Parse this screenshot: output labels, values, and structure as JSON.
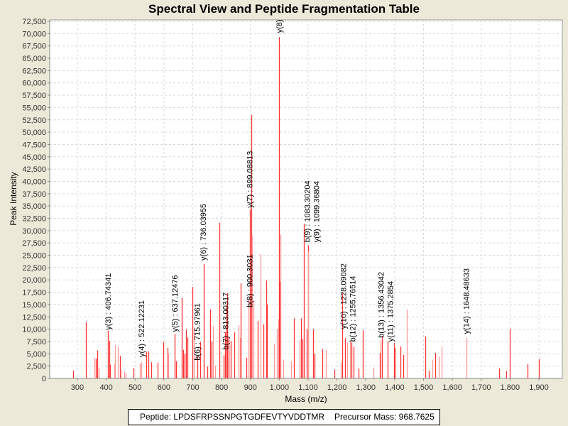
{
  "title": "Spectral View and Peptide Fragmentation Table",
  "footer": {
    "peptide": "Peptide: LPDSFRPSSNPGTGDFEVTYVDDTMR",
    "precursor": "Precursor Mass: 968.7625"
  },
  "chart_data": {
    "type": "bar",
    "title": "Spectral View and Peptide Fragmentation Table",
    "xlabel": "Mass (m/z)",
    "ylabel": "Peak Intensity",
    "xlim": [
      205,
      1980
    ],
    "ylim": [
      0,
      72500
    ],
    "grid": true,
    "x_ticks": [
      300,
      400,
      500,
      600,
      700,
      800,
      900,
      1000,
      1100,
      1200,
      1300,
      1400,
      1500,
      1600,
      1700,
      1800,
      1900
    ],
    "x_tick_labels": [
      "300",
      "400",
      "500",
      "600",
      "700",
      "800",
      "900",
      "1,000",
      "1,100",
      "1,200",
      "1,300",
      "1,400",
      "1,500",
      "1,600",
      "1,700",
      "1,800",
      "1,900"
    ],
    "y_ticks": [
      0,
      2500,
      5000,
      7500,
      10000,
      12500,
      15000,
      17500,
      20000,
      22500,
      25000,
      27500,
      30000,
      32500,
      35000,
      37500,
      40000,
      42500,
      45000,
      47500,
      50000,
      52500,
      55000,
      57500,
      60000,
      62500,
      65000,
      67500,
      70000,
      72500
    ],
    "y_tick_labels": [
      "0",
      "2,500",
      "5,000",
      "7,500",
      "10,000",
      "12,500",
      "15,000",
      "17,500",
      "20,000",
      "22,500",
      "25,000",
      "27,500",
      "30,000",
      "32,500",
      "35,000",
      "37,500",
      "40,000",
      "42,500",
      "45,000",
      "47,500",
      "50,000",
      "52,500",
      "55,000",
      "57,500",
      "60,000",
      "62,500",
      "65,000",
      "67,500",
      "70,000",
      "72,500"
    ],
    "colors": {
      "annotated": "#ff3333",
      "unannotated": "#ff9999"
    },
    "peaks": [
      {
        "mz": 285,
        "intensity": 1600,
        "annotated": true
      },
      {
        "mz": 330,
        "intensity": 11500,
        "annotated": true
      },
      {
        "mz": 359,
        "intensity": 4200,
        "annotated": false
      },
      {
        "mz": 364,
        "intensity": 4000,
        "annotated": true
      },
      {
        "mz": 369,
        "intensity": 5700,
        "annotated": true
      },
      {
        "mz": 373,
        "intensity": 2200,
        "annotated": false
      },
      {
        "mz": 406,
        "intensity": 9700,
        "annotated": true
      },
      {
        "mz": 410,
        "intensity": 7600,
        "annotated": true
      },
      {
        "mz": 412,
        "intensity": 2800,
        "annotated": true
      },
      {
        "mz": 428,
        "intensity": 2900,
        "annotated": false
      },
      {
        "mz": 430,
        "intensity": 6800,
        "annotated": false
      },
      {
        "mz": 440,
        "intensity": 6500,
        "annotated": false
      },
      {
        "mz": 447,
        "intensity": 4600,
        "annotated": true
      },
      {
        "mz": 450,
        "intensity": 1700,
        "annotated": false
      },
      {
        "mz": 462,
        "intensity": 1400,
        "annotated": false
      },
      {
        "mz": 468,
        "intensity": 1100,
        "annotated": false
      },
      {
        "mz": 494,
        "intensity": 2100,
        "annotated": true
      },
      {
        "mz": 517,
        "intensity": 3000,
        "annotated": false
      },
      {
        "mz": 522,
        "intensity": 3300,
        "annotated": false
      },
      {
        "mz": 538,
        "intensity": 5400,
        "annotated": true
      },
      {
        "mz": 547,
        "intensity": 5500,
        "annotated": true
      },
      {
        "mz": 556,
        "intensity": 3300,
        "annotated": true
      },
      {
        "mz": 578,
        "intensity": 3200,
        "annotated": true
      },
      {
        "mz": 599,
        "intensity": 7400,
        "annotated": true
      },
      {
        "mz": 613,
        "intensity": 6200,
        "annotated": true
      },
      {
        "mz": 616,
        "intensity": 5000,
        "annotated": false
      },
      {
        "mz": 637,
        "intensity": 9000,
        "annotated": true
      },
      {
        "mz": 642,
        "intensity": 3500,
        "annotated": true
      },
      {
        "mz": 661,
        "intensity": 16300,
        "annotated": true
      },
      {
        "mz": 667,
        "intensity": 5800,
        "annotated": true
      },
      {
        "mz": 671,
        "intensity": 5000,
        "annotated": true
      },
      {
        "mz": 677,
        "intensity": 9900,
        "annotated": true
      },
      {
        "mz": 681,
        "intensity": 8300,
        "annotated": true
      },
      {
        "mz": 699,
        "intensity": 18600,
        "annotated": true
      },
      {
        "mz": 703,
        "intensity": 10000,
        "annotated": false
      },
      {
        "mz": 715,
        "intensity": 4500,
        "annotated": true
      },
      {
        "mz": 725,
        "intensity": 7400,
        "annotated": true
      },
      {
        "mz": 737,
        "intensity": 23200,
        "annotated": true
      },
      {
        "mz": 750,
        "intensity": 2400,
        "annotated": true
      },
      {
        "mz": 760,
        "intensity": 14000,
        "annotated": true
      },
      {
        "mz": 764,
        "intensity": 7500,
        "annotated": true
      },
      {
        "mz": 769,
        "intensity": 10600,
        "annotated": false
      },
      {
        "mz": 777,
        "intensity": 2600,
        "annotated": false
      },
      {
        "mz": 793,
        "intensity": 31600,
        "annotated": true
      },
      {
        "mz": 806,
        "intensity": 4700,
        "annotated": true
      },
      {
        "mz": 813,
        "intensity": 9400,
        "annotated": true
      },
      {
        "mz": 817,
        "intensity": 14800,
        "annotated": true
      },
      {
        "mz": 819,
        "intensity": 17300,
        "annotated": true
      },
      {
        "mz": 825,
        "intensity": 8300,
        "annotated": true
      },
      {
        "mz": 831,
        "intensity": 7600,
        "annotated": true
      },
      {
        "mz": 843,
        "intensity": 9400,
        "annotated": true
      },
      {
        "mz": 858,
        "intensity": 10800,
        "annotated": false
      },
      {
        "mz": 864,
        "intensity": 8200,
        "annotated": false
      },
      {
        "mz": 866,
        "intensity": 19300,
        "annotated": true
      },
      {
        "mz": 886,
        "intensity": 4200,
        "annotated": true
      },
      {
        "mz": 893,
        "intensity": 16000,
        "annotated": false
      },
      {
        "mz": 899,
        "intensity": 34300,
        "annotated": true
      },
      {
        "mz": 902,
        "intensity": 53500,
        "annotated": true
      },
      {
        "mz": 906,
        "intensity": 29000,
        "annotated": false
      },
      {
        "mz": 910,
        "intensity": 15500,
        "annotated": false
      },
      {
        "mz": 925,
        "intensity": 11700,
        "annotated": true
      },
      {
        "mz": 935,
        "intensity": 25200,
        "annotated": false
      },
      {
        "mz": 944,
        "intensity": 11000,
        "annotated": true
      },
      {
        "mz": 955,
        "intensity": 19900,
        "annotated": true
      },
      {
        "mz": 958,
        "intensity": 15000,
        "annotated": true
      },
      {
        "mz": 981,
        "intensity": 7000,
        "annotated": false
      },
      {
        "mz": 992,
        "intensity": 10000,
        "annotated": false
      },
      {
        "mz": 996,
        "intensity": 12000,
        "annotated": false
      },
      {
        "mz": 1000,
        "intensity": 69300,
        "annotated": true
      },
      {
        "mz": 1002,
        "intensity": 19600,
        "annotated": true
      },
      {
        "mz": 1004,
        "intensity": 29200,
        "annotated": false
      },
      {
        "mz": 1015,
        "intensity": 3800,
        "annotated": false
      },
      {
        "mz": 1040,
        "intensity": 3500,
        "annotated": false
      },
      {
        "mz": 1051,
        "intensity": 12200,
        "annotated": true
      },
      {
        "mz": 1071,
        "intensity": 7800,
        "annotated": false
      },
      {
        "mz": 1075,
        "intensity": 12200,
        "annotated": true
      },
      {
        "mz": 1080,
        "intensity": 8000,
        "annotated": true
      },
      {
        "mz": 1084,
        "intensity": 31400,
        "annotated": true
      },
      {
        "mz": 1095,
        "intensity": 10000,
        "annotated": true
      },
      {
        "mz": 1099,
        "intensity": 27000,
        "annotated": true
      },
      {
        "mz": 1101,
        "intensity": 25800,
        "annotated": false
      },
      {
        "mz": 1116,
        "intensity": 10000,
        "annotated": true
      },
      {
        "mz": 1123,
        "intensity": 5000,
        "annotated": true
      },
      {
        "mz": 1148,
        "intensity": 6000,
        "annotated": true
      },
      {
        "mz": 1161,
        "intensity": 5800,
        "annotated": false
      },
      {
        "mz": 1190,
        "intensity": 1800,
        "annotated": true
      },
      {
        "mz": 1212,
        "intensity": 3200,
        "annotated": false
      },
      {
        "mz": 1217,
        "intensity": 17300,
        "annotated": true
      },
      {
        "mz": 1228,
        "intensity": 8200,
        "annotated": true
      },
      {
        "mz": 1236,
        "intensity": 7300,
        "annotated": false
      },
      {
        "mz": 1245,
        "intensity": 7600,
        "annotated": false
      },
      {
        "mz": 1250,
        "intensity": 7300,
        "annotated": true
      },
      {
        "mz": 1258,
        "intensity": 6400,
        "annotated": true
      },
      {
        "mz": 1275,
        "intensity": 2000,
        "annotated": true
      },
      {
        "mz": 1290,
        "intensity": 9800,
        "annotated": true
      },
      {
        "mz": 1326,
        "intensity": 2200,
        "annotated": false
      },
      {
        "mz": 1348,
        "intensity": 5200,
        "annotated": true
      },
      {
        "mz": 1352,
        "intensity": 7700,
        "annotated": false
      },
      {
        "mz": 1357,
        "intensity": 8600,
        "annotated": true
      },
      {
        "mz": 1375,
        "intensity": 7500,
        "annotated": true
      },
      {
        "mz": 1397,
        "intensity": 7200,
        "annotated": true
      },
      {
        "mz": 1400,
        "intensity": 6200,
        "annotated": true
      },
      {
        "mz": 1419,
        "intensity": 6500,
        "annotated": true
      },
      {
        "mz": 1431,
        "intensity": 4800,
        "annotated": true
      },
      {
        "mz": 1442,
        "intensity": 14000,
        "annotated": false
      },
      {
        "mz": 1505,
        "intensity": 8500,
        "annotated": true
      },
      {
        "mz": 1518,
        "intensity": 1600,
        "annotated": true
      },
      {
        "mz": 1531,
        "intensity": 3800,
        "annotated": false
      },
      {
        "mz": 1541,
        "intensity": 5200,
        "annotated": true
      },
      {
        "mz": 1553,
        "intensity": 4400,
        "annotated": false
      },
      {
        "mz": 1563,
        "intensity": 6500,
        "annotated": false
      },
      {
        "mz": 1648,
        "intensity": 8200,
        "annotated": false
      },
      {
        "mz": 1762,
        "intensity": 2000,
        "annotated": true
      },
      {
        "mz": 1786,
        "intensity": 1500,
        "annotated": true
      },
      {
        "mz": 1800,
        "intensity": 10000,
        "annotated": true
      },
      {
        "mz": 1861,
        "intensity": 2900,
        "annotated": true
      },
      {
        "mz": 1900,
        "intensity": 3900,
        "annotated": true
      }
    ],
    "annotations": [
      {
        "label": "y(3) : 406.74341",
        "mz": 406,
        "intensity": 9400
      },
      {
        "label": "y(4) : 522.12231",
        "mz": 522,
        "intensity": 3900
      },
      {
        "label": "y(5) : 637.12476",
        "mz": 637,
        "intensity": 9000
      },
      {
        "label": "b(6) : 715.97961",
        "mz": 715,
        "intensity": 3200
      },
      {
        "label": "y(6) : 736.03955",
        "mz": 736,
        "intensity": 23500
      },
      {
        "label": "b(7) : 813.00317",
        "mz": 813,
        "intensity": 5400
      },
      {
        "label": "b(8) : 900.3031",
        "mz": 897,
        "intensity": 14000
      },
      {
        "label": "y(7) : 899.08813",
        "mz": 897,
        "intensity": 34200
      },
      {
        "label": "y(8) :",
        "mz": 999,
        "intensity": 69700
      },
      {
        "label": "b(9) : 1083.30204",
        "mz": 1096,
        "intensity": 27200
      },
      {
        "label": "y(9) : 1099.36804",
        "mz": 1096,
        "intensity": 27200
      },
      {
        "label": "y(10) : 1228.09082",
        "mz": 1222,
        "intensity": 9600
      },
      {
        "label": "b(12) : 1255.76514",
        "mz": 1250,
        "intensity": 7000
      },
      {
        "label": "b(13) : 1356.43042",
        "mz": 1352,
        "intensity": 7800
      },
      {
        "label": "y(11) : 1375.2854",
        "mz": 1369,
        "intensity": 7000
      },
      {
        "label": "y(14) : 1648.48633",
        "mz": 1648,
        "intensity": 8600
      }
    ]
  }
}
